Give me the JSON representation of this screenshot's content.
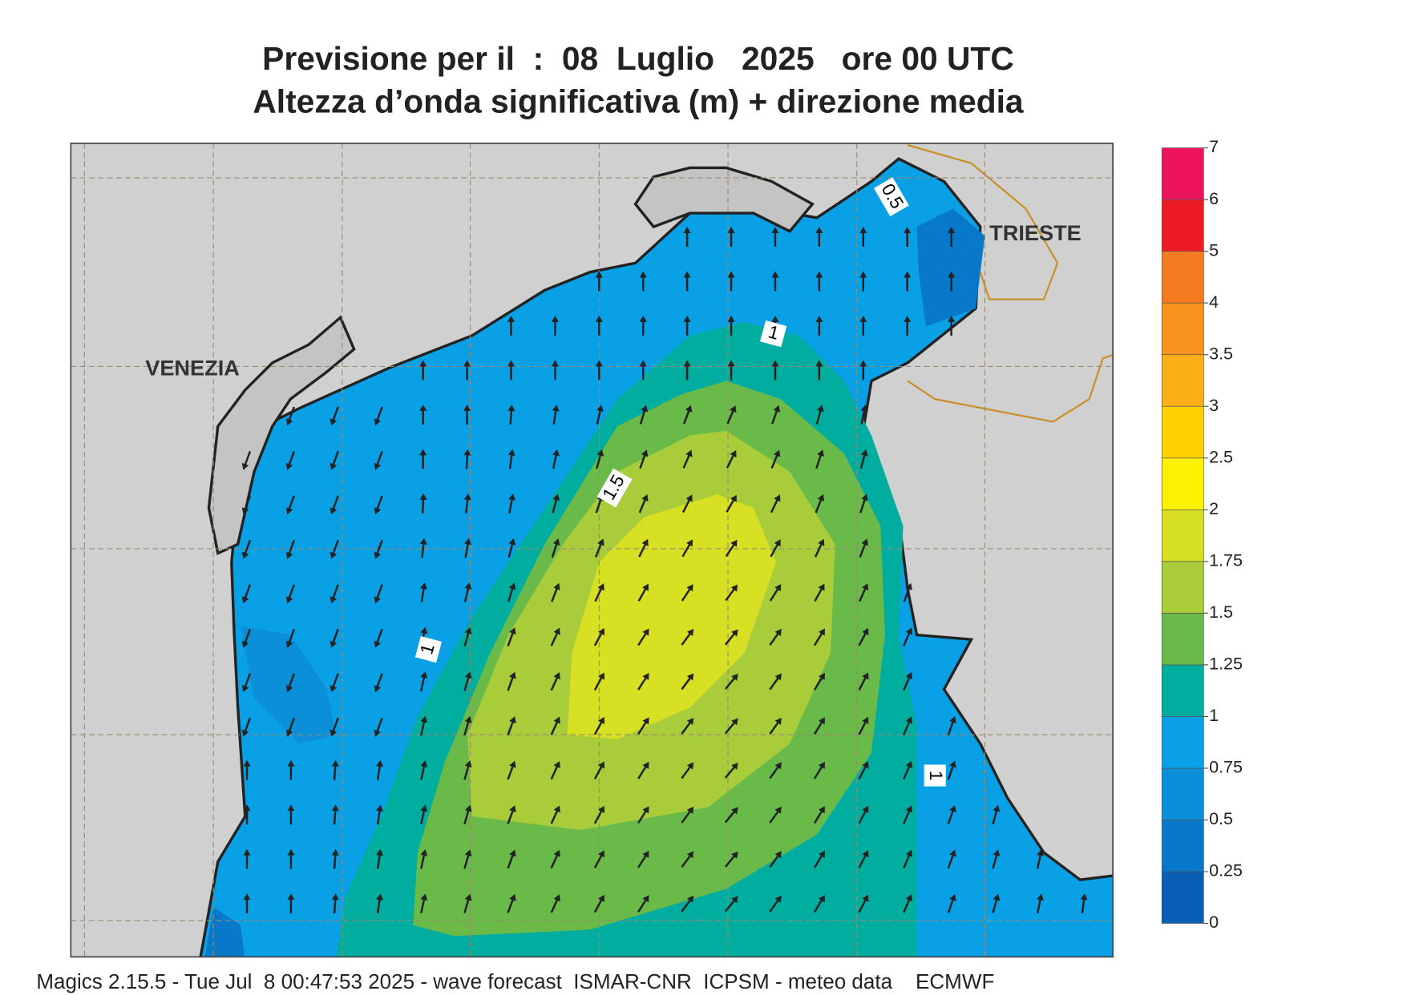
{
  "header": {
    "title_line1": "Previsione per il  :  08  Luglio   2025   ore 00 UTC",
    "title_line2": "Altezza d’onda significativa (m) + direzione media"
  },
  "map": {
    "cities": [
      "VENEZIA",
      "TRIESTE"
    ],
    "contour_labels": [
      0.5,
      1,
      1.5,
      1,
      1
    ]
  },
  "colorbar": {
    "ticks": [
      0,
      0.25,
      0.5,
      0.75,
      1,
      1.25,
      1.5,
      1.75,
      2,
      2.5,
      3,
      3.5,
      4,
      5,
      6,
      7
    ],
    "colors": [
      "#0a5fb4",
      "#0878c8",
      "#0a8fd8",
      "#0aa0e6",
      "#00ad9f",
      "#6aba4a",
      "#a8cc3a",
      "#d8e024",
      "#fff200",
      "#ffd200",
      "#fbb018",
      "#f7941d",
      "#f47b20",
      "#ed1c24",
      "#ec145c"
    ]
  },
  "footer": "Magics 2.15.5 - Tue Jul  8 00:47:53 2025 - wave forecast  ISMAR-CNR  ICPSM - meteo data    ECMWF"
}
